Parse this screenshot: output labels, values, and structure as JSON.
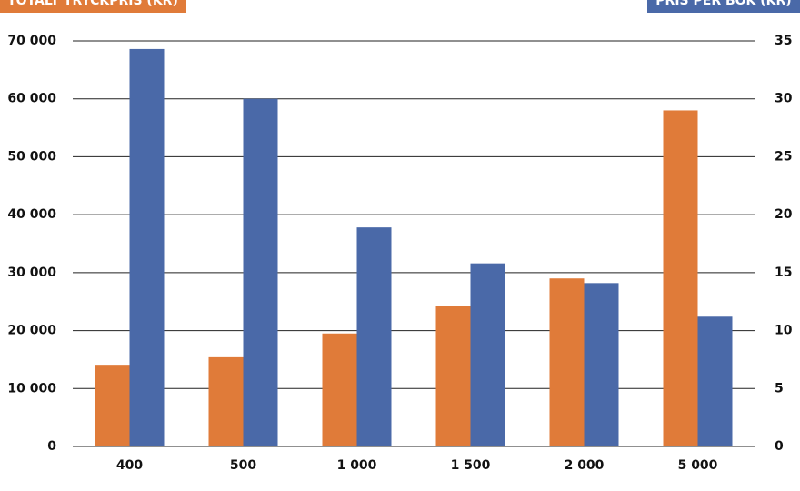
{
  "chart_data": {
    "type": "bar",
    "categories": [
      "400",
      "500",
      "1 000",
      "1 500",
      "2 000",
      "5 000"
    ],
    "series": [
      {
        "name": "TOTALT TRYCKPRIS (KR)",
        "color": "#e07b39",
        "values": [
          14100,
          15400,
          19500,
          24300,
          29000,
          58000
        ]
      },
      {
        "name": "PRIS PER BOK (KR)",
        "color": "#4a69a8",
        "axis": "y2",
        "values": [
          34.3,
          30,
          18.9,
          15.8,
          14.1,
          11.2
        ]
      }
    ],
    "ylim": [
      0,
      70000
    ],
    "yticks": [
      0,
      {
        "value": 10000,
        "label": "10 000"
      },
      {
        "value": 20000,
        "label": "20 000"
      },
      {
        "value": 30000,
        "label": "30 000"
      },
      {
        "value": 40000,
        "label": "40 000"
      },
      {
        "value": 50000,
        "label": "50 000"
      },
      {
        "value": 60000,
        "label": "60 000"
      },
      {
        "value": 70000,
        "label": "70 000"
      }
    ],
    "y2lim": [
      0,
      35
    ],
    "y2ticks": [
      0,
      5,
      10,
      15,
      20,
      25,
      30,
      35
    ],
    "grid": true
  }
}
